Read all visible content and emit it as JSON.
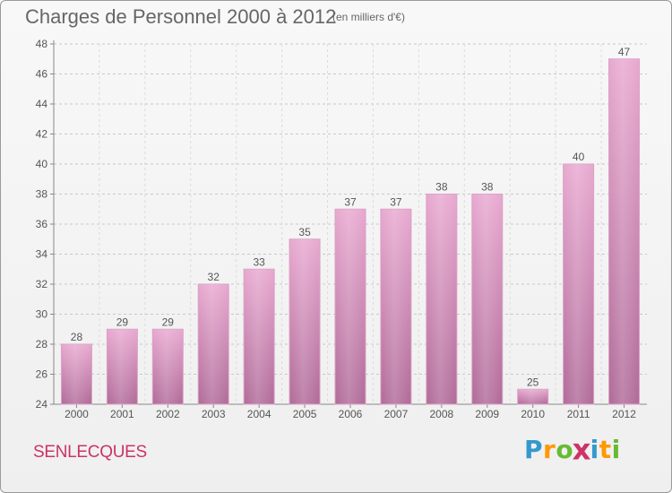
{
  "header": {
    "title": "Charges de Personnel 2000 à 2012",
    "unit": "(en milliers d'€)"
  },
  "commune": "SENLECQUES",
  "logo": {
    "letters": [
      "P",
      "r",
      "o",
      "x",
      "i",
      "t",
      "i"
    ],
    "colors": [
      "#3399cc",
      "#ff9900",
      "#66bb33",
      "#cc3366",
      "#3399cc",
      "#ff9900",
      "#66bb33"
    ]
  },
  "colors": {
    "bar_top": "#e8a8d0",
    "bar_bottom": "#b06a98",
    "text": "#555555"
  },
  "chart_data": {
    "type": "bar",
    "categories": [
      "2000",
      "2001",
      "2002",
      "2003",
      "2004",
      "2005",
      "2006",
      "2007",
      "2008",
      "2009",
      "2010",
      "2011",
      "2012"
    ],
    "values": [
      28,
      29,
      29,
      32,
      33,
      35,
      37,
      37,
      38,
      38,
      25,
      40,
      47
    ],
    "title": "Charges de Personnel 2000 à 2012",
    "ylim": [
      24,
      48
    ],
    "yticks": [
      24,
      26,
      28,
      30,
      32,
      34,
      36,
      38,
      40,
      42,
      44,
      46,
      48
    ],
    "grid": true,
    "data_labels": true
  }
}
